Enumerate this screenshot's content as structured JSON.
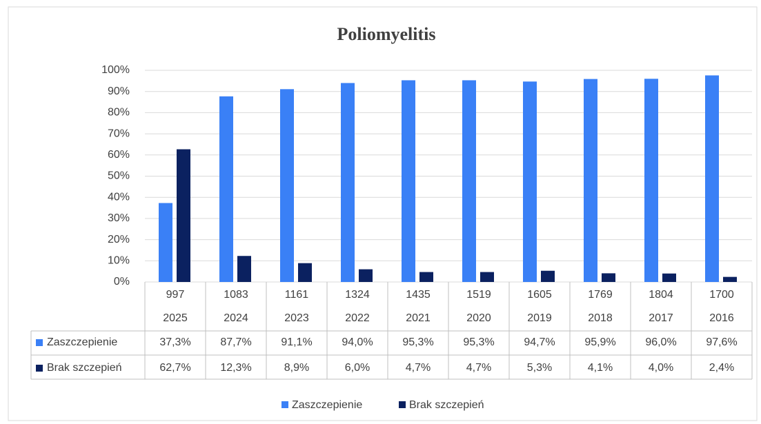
{
  "chart_data": {
    "type": "bar",
    "title": "Poliomyelitis",
    "categories": [
      "2025",
      "2024",
      "2023",
      "2022",
      "2021",
      "2020",
      "2019",
      "2018",
      "2017",
      "2016"
    ],
    "sample_sizes": [
      997,
      1083,
      1161,
      1324,
      1435,
      1519,
      1605,
      1769,
      1804,
      1700
    ],
    "series": [
      {
        "name": "Zaszczepienie",
        "color": "#3a80f6",
        "values": [
          37.3,
          87.7,
          91.1,
          94.0,
          95.3,
          95.3,
          94.7,
          95.9,
          96.0,
          97.6
        ],
        "value_labels": [
          "37,3%",
          "87,7%",
          "91,1%",
          "94,0%",
          "95,3%",
          "95,3%",
          "94,7%",
          "95,9%",
          "96,0%",
          "97,6%"
        ]
      },
      {
        "name": "Brak szczepień",
        "color": "#0b2160",
        "values": [
          62.7,
          12.3,
          8.9,
          6.0,
          4.7,
          4.7,
          5.3,
          4.1,
          4.0,
          2.4
        ],
        "value_labels": [
          "62,7%",
          "12,3%",
          "8,9%",
          "6,0%",
          "4,7%",
          "4,7%",
          "5,3%",
          "4,1%",
          "4,0%",
          "2,4%"
        ]
      }
    ],
    "ylim": [
      0,
      100
    ],
    "yticks": [
      {
        "value": 0,
        "label": "0%"
      },
      {
        "value": 10,
        "label": "10%"
      },
      {
        "value": 20,
        "label": "20%"
      },
      {
        "value": 30,
        "label": "30%"
      },
      {
        "value": 40,
        "label": "40%"
      },
      {
        "value": 50,
        "label": "50%"
      },
      {
        "value": 60,
        "label": "60%"
      },
      {
        "value": 70,
        "label": "70%"
      },
      {
        "value": 80,
        "label": "80%"
      },
      {
        "value": 90,
        "label": "90%"
      },
      {
        "value": 100,
        "label": "100%"
      }
    ],
    "grid": true,
    "legend": "bottom"
  }
}
